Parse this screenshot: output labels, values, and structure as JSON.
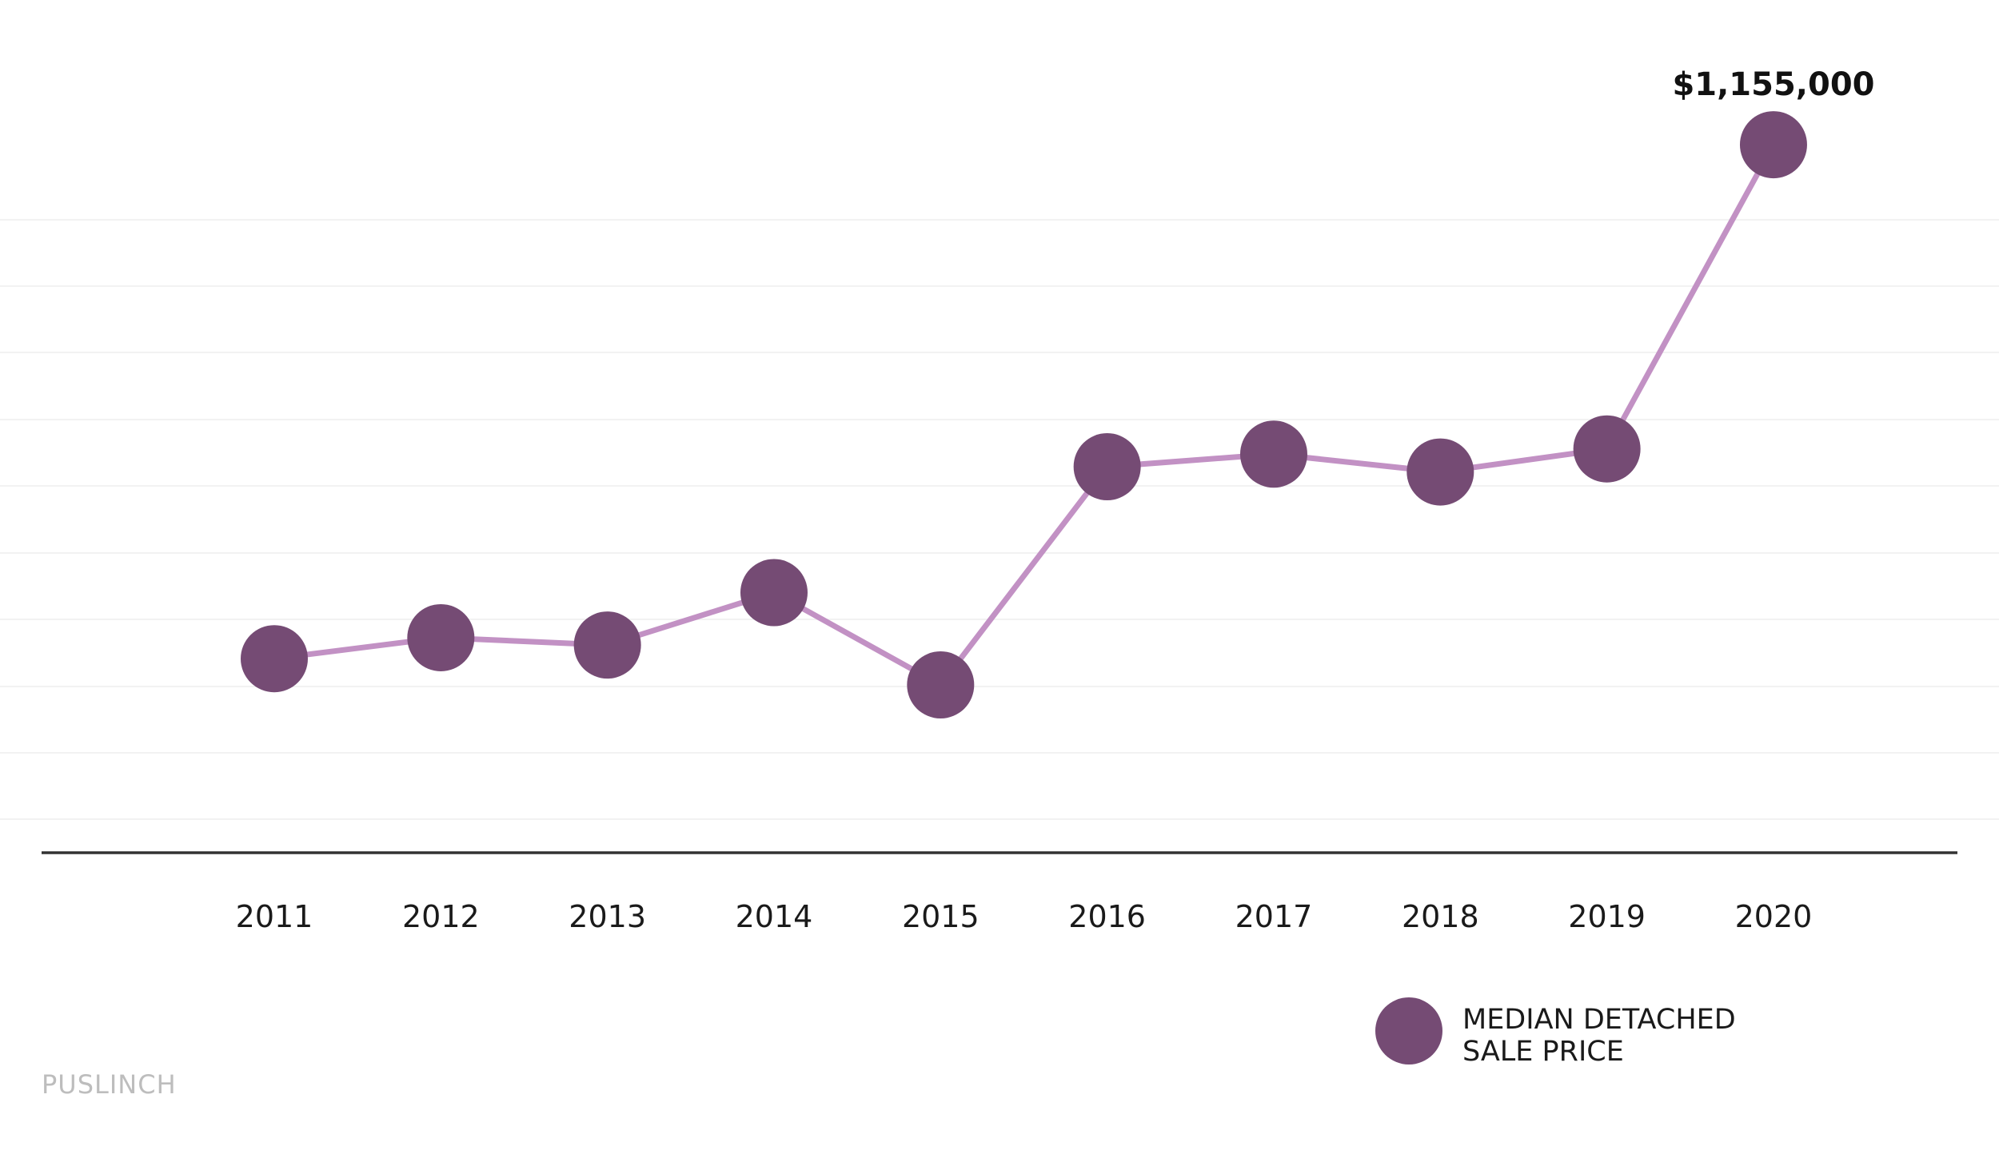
{
  "chart_data": {
    "type": "line",
    "title": "",
    "xlabel": "",
    "ylabel": "",
    "categories": [
      "2011",
      "2012",
      "2013",
      "2014",
      "2015",
      "2016",
      "2017",
      "2018",
      "2019",
      "2020"
    ],
    "series": [
      {
        "name": "MEDIAN DETACHED SALE PRICE",
        "values": [
          665000,
          685000,
          678000,
          728000,
          640000,
          848000,
          860000,
          843000,
          865000,
          1155000
        ],
        "color_line": "#c291c4",
        "color_marker": "#754b74"
      }
    ],
    "ylim": [
      480000,
      1200000
    ],
    "grid": true,
    "annotations": [
      {
        "category": "2020",
        "text": "$1,155,000"
      }
    ],
    "legend": {
      "placement": "bottom-right",
      "lines": [
        "MEDIAN DETACHED",
        "SALE PRICE"
      ]
    }
  },
  "footer": {
    "label": "PUSLINCH"
  }
}
